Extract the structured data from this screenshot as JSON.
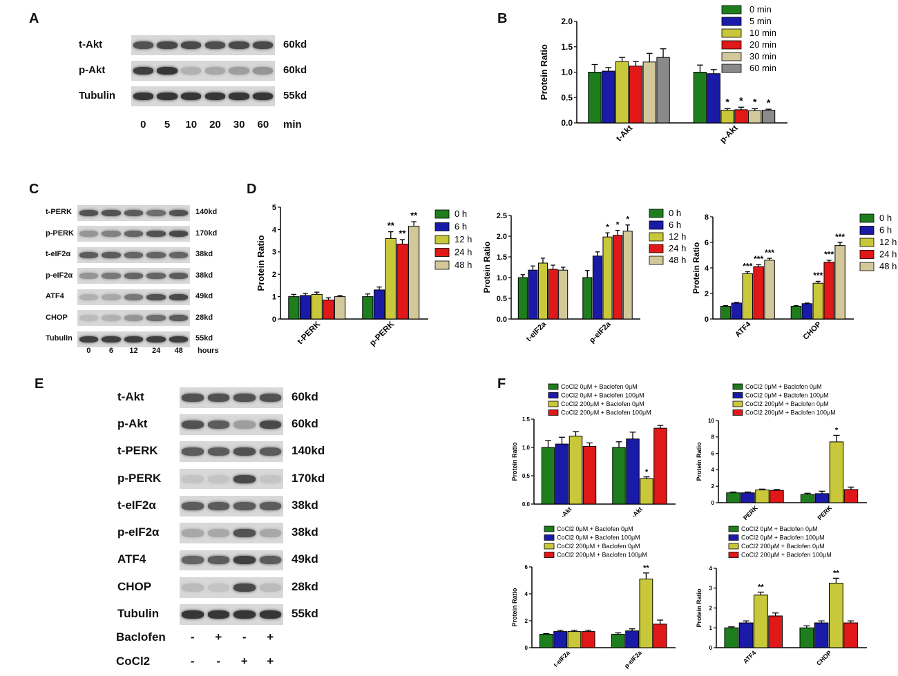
{
  "panel_labels": {
    "A": "A",
    "B": "B",
    "C": "C",
    "D": "D",
    "E": "E",
    "F": "F"
  },
  "blotA": {
    "rows": [
      {
        "label": "t-Akt",
        "kd": "60kd",
        "intensity": [
          0.7,
          0.75,
          0.75,
          0.72,
          0.75,
          0.75
        ]
      },
      {
        "label": "p-Akt",
        "kd": "60kd",
        "intensity": [
          0.8,
          0.85,
          0.2,
          0.25,
          0.3,
          0.35
        ]
      },
      {
        "label": "Tubulin",
        "kd": "55kd",
        "intensity": [
          0.85,
          0.85,
          0.85,
          0.85,
          0.85,
          0.85
        ]
      }
    ],
    "lanes": [
      "0",
      "5",
      "10",
      "20",
      "30",
      "60"
    ],
    "unit": "min"
  },
  "blotC": {
    "rows": [
      {
        "label": "t-PERK",
        "kd": "140kd",
        "intensity": [
          0.7,
          0.7,
          0.65,
          0.55,
          0.7
        ]
      },
      {
        "label": "p-PERK",
        "kd": "170kd",
        "intensity": [
          0.35,
          0.45,
          0.6,
          0.7,
          0.75
        ]
      },
      {
        "label": "t-eIF2α",
        "kd": "38kd",
        "intensity": [
          0.65,
          0.65,
          0.6,
          0.6,
          0.6
        ]
      },
      {
        "label": "p-eIF2α",
        "kd": "38kd",
        "intensity": [
          0.35,
          0.5,
          0.6,
          0.6,
          0.65
        ]
      },
      {
        "label": "ATF4",
        "kd": "49kd",
        "intensity": [
          0.2,
          0.25,
          0.5,
          0.7,
          0.75
        ]
      },
      {
        "label": "CHOP",
        "kd": "28kd",
        "intensity": [
          0.15,
          0.2,
          0.35,
          0.55,
          0.65
        ]
      },
      {
        "label": "Tubulin",
        "kd": "55kd",
        "intensity": [
          0.8,
          0.8,
          0.8,
          0.8,
          0.8
        ]
      }
    ],
    "lanes": [
      "0",
      "6",
      "12",
      "24",
      "48"
    ],
    "unit": "hours"
  },
  "blotE": {
    "rows": [
      {
        "label": "t-Akt",
        "kd": "60kd",
        "intensity": [
          0.7,
          0.7,
          0.7,
          0.7
        ]
      },
      {
        "label": "p-Akt",
        "kd": "60kd",
        "intensity": [
          0.7,
          0.65,
          0.3,
          0.75
        ]
      },
      {
        "label": "t-PERK",
        "kd": "140kd",
        "intensity": [
          0.65,
          0.65,
          0.7,
          0.65
        ]
      },
      {
        "label": "p-PERK",
        "kd": "170kd",
        "intensity": [
          0.1,
          0.1,
          0.75,
          0.1
        ]
      },
      {
        "label": "t-eIF2α",
        "kd": "38kd",
        "intensity": [
          0.65,
          0.65,
          0.65,
          0.65
        ]
      },
      {
        "label": "p-eIF2α",
        "kd": "38kd",
        "intensity": [
          0.25,
          0.25,
          0.7,
          0.25
        ]
      },
      {
        "label": "ATF4",
        "kd": "49kd",
        "intensity": [
          0.6,
          0.65,
          0.8,
          0.65
        ]
      },
      {
        "label": "CHOP",
        "kd": "28kd",
        "intensity": [
          0.15,
          0.1,
          0.75,
          0.15
        ]
      },
      {
        "label": "Tubulin",
        "kd": "55kd",
        "intensity": [
          0.85,
          0.85,
          0.85,
          0.85
        ]
      }
    ],
    "treatments": [
      {
        "label": "Baclofen",
        "marks": [
          "-",
          "+",
          "-",
          "+"
        ]
      },
      {
        "label": "CoCl2",
        "marks": [
          "-",
          "-",
          "+",
          "+"
        ]
      }
    ]
  },
  "chart_data": [
    {
      "id": "B",
      "type": "bar",
      "ylabel": "Protein Ratio",
      "ylim": [
        0,
        2.0
      ],
      "yticks": [
        "0.0",
        "0.5",
        "1.0",
        "1.5",
        "2.0"
      ],
      "categories": [
        "t-Akt",
        "p-Akt"
      ],
      "series": [
        {
          "name": "0 min",
          "color": "#1e7e1e",
          "values": [
            1.0,
            1.0
          ],
          "err": [
            0.15,
            0.14
          ]
        },
        {
          "name": "5 min",
          "color": "#1a1aa8",
          "values": [
            1.02,
            0.97
          ],
          "err": [
            0.07,
            0.08
          ]
        },
        {
          "name": "10 min",
          "color": "#c8c83a",
          "values": [
            1.21,
            0.25
          ],
          "err": [
            0.08,
            0.03
          ]
        },
        {
          "name": "20 min",
          "color": "#e01818",
          "values": [
            1.12,
            0.26
          ],
          "err": [
            0.09,
            0.05
          ]
        },
        {
          "name": "30 min",
          "color": "#d2c89a",
          "values": [
            1.2,
            0.24
          ],
          "err": [
            0.17,
            0.04
          ]
        },
        {
          "name": "60 min",
          "color": "#8a8a8a",
          "values": [
            1.29,
            0.25
          ],
          "err": [
            0.17,
            0.02
          ]
        }
      ],
      "annotations": [
        {
          "cat": 1,
          "series": 2,
          "text": "*"
        },
        {
          "cat": 1,
          "series": 3,
          "text": "*"
        },
        {
          "cat": 1,
          "series": 4,
          "text": "*"
        },
        {
          "cat": 1,
          "series": 5,
          "text": "*"
        }
      ]
    },
    {
      "id": "D1",
      "type": "bar",
      "ylabel": "Protein Ratio",
      "ylim": [
        0,
        5
      ],
      "yticks": [
        "0",
        "1",
        "2",
        "3",
        "4",
        "5"
      ],
      "categories": [
        "t-PERK",
        "p-PERK"
      ],
      "series": [
        {
          "name": "0 h",
          "color": "#1e7e1e",
          "values": [
            1.0,
            1.0
          ],
          "err": [
            0.1,
            0.12
          ]
        },
        {
          "name": "6 h",
          "color": "#1a1aa8",
          "values": [
            1.05,
            1.3
          ],
          "err": [
            0.1,
            0.13
          ]
        },
        {
          "name": "12 h",
          "color": "#c8c83a",
          "values": [
            1.1,
            3.6
          ],
          "err": [
            0.1,
            0.3
          ]
        },
        {
          "name": "24 h",
          "color": "#e01818",
          "values": [
            0.85,
            3.35
          ],
          "err": [
            0.1,
            0.2
          ]
        },
        {
          "name": "48 h",
          "color": "#d2c89a",
          "values": [
            1.0,
            4.15
          ],
          "err": [
            0.05,
            0.2
          ]
        }
      ],
      "annotations": [
        {
          "cat": 1,
          "series": 2,
          "text": "**"
        },
        {
          "cat": 1,
          "series": 3,
          "text": "**"
        },
        {
          "cat": 1,
          "series": 4,
          "text": "**"
        }
      ]
    },
    {
      "id": "D2",
      "type": "bar",
      "ylabel": "Protein Ratio",
      "ylim": [
        0,
        2.5
      ],
      "yticks": [
        "0.0",
        "0.5",
        "1.0",
        "1.5",
        "2.0",
        "2.5"
      ],
      "categories": [
        "t-eIF2a",
        "p-eIF2a"
      ],
      "series": [
        {
          "name": "0 h",
          "color": "#1e7e1e",
          "values": [
            1.0,
            1.0
          ],
          "err": [
            0.07,
            0.17
          ]
        },
        {
          "name": "6 h",
          "color": "#1a1aa8",
          "values": [
            1.18,
            1.52
          ],
          "err": [
            0.1,
            0.1
          ]
        },
        {
          "name": "12 h",
          "color": "#c8c83a",
          "values": [
            1.35,
            1.98
          ],
          "err": [
            0.12,
            0.1
          ]
        },
        {
          "name": "24 h",
          "color": "#e01818",
          "values": [
            1.2,
            2.02
          ],
          "err": [
            0.1,
            0.12
          ]
        },
        {
          "name": "48 h",
          "color": "#d2c89a",
          "values": [
            1.18,
            2.12
          ],
          "err": [
            0.07,
            0.15
          ]
        }
      ],
      "annotations": [
        {
          "cat": 1,
          "series": 2,
          "text": "*"
        },
        {
          "cat": 1,
          "series": 3,
          "text": "*"
        },
        {
          "cat": 1,
          "series": 4,
          "text": "*"
        }
      ]
    },
    {
      "id": "D3",
      "type": "bar",
      "ylabel": "Protein Ratio",
      "ylim": [
        0,
        8
      ],
      "yticks": [
        "0",
        "2",
        "4",
        "6",
        "8"
      ],
      "categories": [
        "ATF4",
        "CHOP"
      ],
      "series": [
        {
          "name": "0 h",
          "color": "#1e7e1e",
          "values": [
            1.0,
            1.0
          ],
          "err": [
            0.05,
            0.05
          ]
        },
        {
          "name": "6 h",
          "color": "#1a1aa8",
          "values": [
            1.25,
            1.2
          ],
          "err": [
            0.05,
            0.05
          ]
        },
        {
          "name": "12 h",
          "color": "#c8c83a",
          "values": [
            3.55,
            2.8
          ],
          "err": [
            0.15,
            0.15
          ]
        },
        {
          "name": "24 h",
          "color": "#e01818",
          "values": [
            4.1,
            4.45
          ],
          "err": [
            0.15,
            0.15
          ]
        },
        {
          "name": "48 h",
          "color": "#d2c89a",
          "values": [
            4.6,
            5.75
          ],
          "err": [
            0.15,
            0.25
          ]
        }
      ],
      "annotations": [
        {
          "cat": 0,
          "series": 2,
          "text": "***"
        },
        {
          "cat": 0,
          "series": 3,
          "text": "***"
        },
        {
          "cat": 0,
          "series": 4,
          "text": "***"
        },
        {
          "cat": 1,
          "series": 2,
          "text": "***"
        },
        {
          "cat": 1,
          "series": 3,
          "text": "***"
        },
        {
          "cat": 1,
          "series": 4,
          "text": "***"
        }
      ]
    },
    {
      "id": "F1",
      "type": "bar",
      "ylabel": "Protein Ratio",
      "ylim": [
        0,
        1.5
      ],
      "yticks": [
        "0.0",
        "0.5",
        "1.0",
        "1.5"
      ],
      "categories": [
        "-Akt",
        "-Akt"
      ],
      "series": [
        {
          "name": "CoCl2 0μM + Baclofen 0μM",
          "color": "#1e7e1e",
          "values": [
            1.0,
            1.0
          ],
          "err": [
            0.12,
            0.1
          ]
        },
        {
          "name": "CoCl2 0μM + Baclofen 100μM",
          "color": "#1a1aa8",
          "values": [
            1.06,
            1.15
          ],
          "err": [
            0.12,
            0.12
          ]
        },
        {
          "name": "CoCl2 200μM + Baclofen 0μM",
          "color": "#c8c83a",
          "values": [
            1.2,
            0.45
          ],
          "err": [
            0.08,
            0.03
          ]
        },
        {
          "name": "CoCl2 200μM + Baclofen 100μM",
          "color": "#e01818",
          "values": [
            1.02,
            1.34
          ],
          "err": [
            0.06,
            0.05
          ]
        }
      ],
      "annotations": [
        {
          "cat": 1,
          "series": 2,
          "text": "*"
        }
      ]
    },
    {
      "id": "F2",
      "type": "bar",
      "ylabel": "Protein Ratio",
      "ylim": [
        0,
        10
      ],
      "yticks": [
        "0",
        "2",
        "4",
        "6",
        "8",
        "10"
      ],
      "categories": [
        "PERK",
        "PERK"
      ],
      "series": [
        {
          "name": "CoCl2 0μM + Baclofen 0μM",
          "color": "#1e7e1e",
          "values": [
            1.2,
            1.0
          ],
          "err": [
            0.1,
            0.15
          ]
        },
        {
          "name": "CoCl2 0μM + Baclofen 100μM",
          "color": "#1a1aa8",
          "values": [
            1.2,
            1.1
          ],
          "err": [
            0.1,
            0.3
          ]
        },
        {
          "name": "CoCl2 200μM + Baclofen 0μM",
          "color": "#c8c83a",
          "values": [
            1.55,
            7.4
          ],
          "err": [
            0.1,
            0.8
          ]
        },
        {
          "name": "CoCl2 200μM + Baclofen 100μM",
          "color": "#e01818",
          "values": [
            1.5,
            1.6
          ],
          "err": [
            0.1,
            0.3
          ]
        }
      ],
      "annotations": [
        {
          "cat": 1,
          "series": 2,
          "text": "*"
        }
      ]
    },
    {
      "id": "F3",
      "type": "bar",
      "ylabel": "Protein Ratio",
      "ylim": [
        0,
        6
      ],
      "yticks": [
        "0",
        "2",
        "4",
        "6"
      ],
      "categories": [
        "t-eIF2a",
        "p-eIF2a"
      ],
      "series": [
        {
          "name": "CoCl2 0μM + Baclofen 0μM",
          "color": "#1e7e1e",
          "values": [
            1.0,
            1.0
          ],
          "err": [
            0.05,
            0.1
          ]
        },
        {
          "name": "CoCl2 0μM + Baclofen 100μM",
          "color": "#1a1aa8",
          "values": [
            1.2,
            1.25
          ],
          "err": [
            0.1,
            0.15
          ]
        },
        {
          "name": "CoCl2 200μM + Baclofen 0μM",
          "color": "#c8c83a",
          "values": [
            1.2,
            5.1
          ],
          "err": [
            0.1,
            0.45
          ]
        },
        {
          "name": "CoCl2 200μM + Baclofen 100μM",
          "color": "#e01818",
          "values": [
            1.2,
            1.75
          ],
          "err": [
            0.1,
            0.3
          ]
        }
      ],
      "annotations": [
        {
          "cat": 1,
          "series": 2,
          "text": "**"
        }
      ]
    },
    {
      "id": "F4",
      "type": "bar",
      "ylabel": "Protein Ratio",
      "ylim": [
        0,
        4
      ],
      "yticks": [
        "0",
        "1",
        "2",
        "3",
        "4"
      ],
      "categories": [
        "ATF4",
        "CHOP"
      ],
      "series": [
        {
          "name": "CoCl2 0μM + Baclofen 0μM",
          "color": "#1e7e1e",
          "values": [
            1.0,
            1.0
          ],
          "err": [
            0.05,
            0.1
          ]
        },
        {
          "name": "CoCl2 0μM + Baclofen 100μM",
          "color": "#1a1aa8",
          "values": [
            1.25,
            1.25
          ],
          "err": [
            0.1,
            0.1
          ]
        },
        {
          "name": "CoCl2 200μM + Baclofen 0μM",
          "color": "#c8c83a",
          "values": [
            2.65,
            3.25
          ],
          "err": [
            0.15,
            0.25
          ]
        },
        {
          "name": "CoCl2 200μM + Baclofen 100μM",
          "color": "#e01818",
          "values": [
            1.6,
            1.25
          ],
          "err": [
            0.15,
            0.1
          ]
        }
      ],
      "annotations": [
        {
          "cat": 0,
          "series": 2,
          "text": "**"
        },
        {
          "cat": 1,
          "series": 2,
          "text": "**"
        }
      ]
    }
  ]
}
